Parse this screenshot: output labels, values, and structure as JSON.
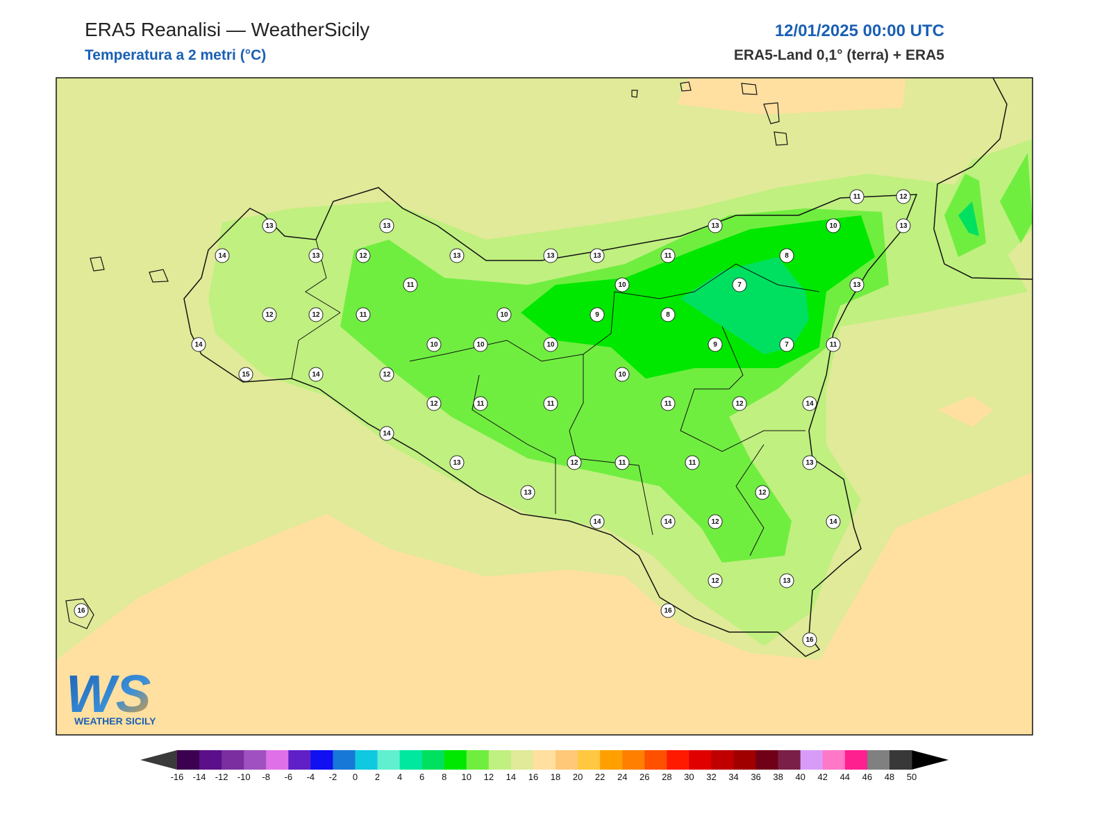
{
  "header": {
    "title": "ERA5 Reanalisi — WeatherSicily",
    "subtitle": "Temperatura a 2 metri (°C)",
    "datetime": "12/01/2025 00:00 UTC",
    "source": "ERA5-Land 0,1° (terra) + ERA5"
  },
  "stations": [
    13,
    13,
    14,
    13,
    12,
    13,
    13,
    13,
    11,
    13,
    10,
    11,
    12,
    13,
    8,
    11,
    10,
    7,
    13,
    12,
    12,
    11,
    10,
    9,
    8,
    14,
    10,
    10,
    10,
    9,
    7,
    11,
    15,
    14,
    12,
    10,
    12,
    11,
    11,
    11,
    12,
    14,
    14,
    13,
    12,
    11,
    11,
    13,
    12,
    13,
    14,
    14,
    12,
    14,
    12,
    13,
    16,
    16,
    16
  ],
  "colorbar": {
    "ticks": [
      -16,
      -14,
      -12,
      -10,
      -8,
      -6,
      -4,
      -2,
      0,
      2,
      4,
      6,
      8,
      10,
      12,
      14,
      16,
      18,
      20,
      22,
      24,
      26,
      28,
      30,
      32,
      34,
      36,
      38,
      40,
      42,
      44,
      46,
      48,
      50
    ],
    "colors": [
      "#3c0050",
      "#5b0f8a",
      "#7a2ea0",
      "#a050c0",
      "#e070e8",
      "#6020c8",
      "#1010f0",
      "#1878d8",
      "#10c8e0",
      "#60f0d0",
      "#00e8a0",
      "#00e060",
      "#00e800",
      "#70ee40",
      "#c0f080",
      "#e0ea98",
      "#ffe0a0",
      "#ffc878",
      "#ffc840",
      "#ffa000",
      "#ff8000",
      "#ff5000",
      "#ff1a00",
      "#e00000",
      "#c00000",
      "#a00000",
      "#700018",
      "#7a2048",
      "#d89cf8",
      "#ff78c8",
      "#ff2090",
      "#808080",
      "#383838"
    ],
    "under_color": "#3a3a3a",
    "over_color": "#000000"
  },
  "logo": {
    "initials": "WS",
    "text": "WEATHER SICILY"
  }
}
